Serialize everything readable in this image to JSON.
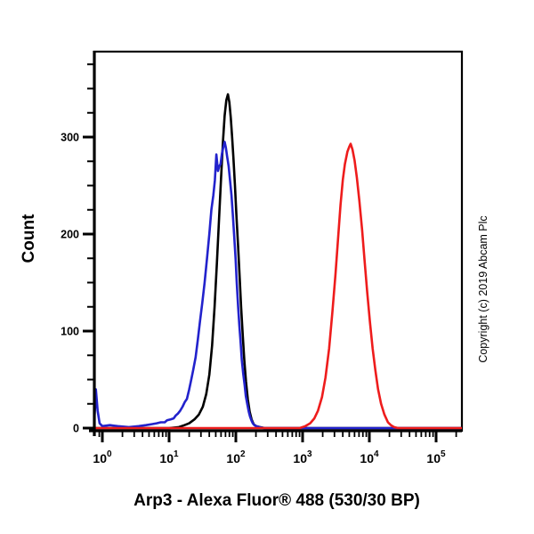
{
  "figure": {
    "copyright": "Copyright (c) 2019 Abcam Plc"
  },
  "chart_data": {
    "type": "line",
    "subtype": "flow-cytometry-histogram",
    "title": "",
    "xlabel": "Arp3 - Alexa Fluor® 488 (530/30 BP)",
    "ylabel": "Count",
    "x_scale": "log10",
    "x_tick_base": "10",
    "x_tick_exponents": [
      0,
      1,
      2,
      3,
      4,
      5
    ],
    "x_range_log": [
      -0.13,
      5.4
    ],
    "y_ticks": [
      0,
      100,
      200,
      300
    ],
    "y_minor_step": 25,
    "ylim": [
      0,
      388
    ],
    "grid": false,
    "legend": "none",
    "series": [
      {
        "name": "black-histogram",
        "color": "#000000",
        "peak_x": 76,
        "peak_y": 344,
        "points": [
          [
            0.74,
            0
          ],
          [
            10,
            0
          ],
          [
            14,
            1
          ],
          [
            17,
            3
          ],
          [
            20,
            5
          ],
          [
            24,
            9
          ],
          [
            28,
            14
          ],
          [
            32,
            22
          ],
          [
            36,
            35
          ],
          [
            40,
            55
          ],
          [
            44,
            85
          ],
          [
            48,
            125
          ],
          [
            52,
            170
          ],
          [
            56,
            215
          ],
          [
            60,
            258
          ],
          [
            64,
            295
          ],
          [
            68,
            322
          ],
          [
            72,
            338
          ],
          [
            76,
            344
          ],
          [
            80,
            336
          ],
          [
            84,
            320
          ],
          [
            88,
            300
          ],
          [
            92,
            278
          ],
          [
            97,
            250
          ],
          [
            102,
            220
          ],
          [
            108,
            188
          ],
          [
            114,
            155
          ],
          [
            120,
            125
          ],
          [
            127,
            95
          ],
          [
            134,
            70
          ],
          [
            142,
            48
          ],
          [
            151,
            30
          ],
          [
            161,
            17
          ],
          [
            172,
            9
          ],
          [
            185,
            4
          ],
          [
            200,
            2
          ],
          [
            230,
            1
          ],
          [
            270,
            0
          ],
          [
            250000,
            0
          ]
        ]
      },
      {
        "name": "blue-histogram",
        "color": "#2222cc",
        "peak_x": 68,
        "peak_y": 295,
        "points": [
          [
            0.74,
            0
          ],
          [
            0.78,
            22
          ],
          [
            0.8,
            40
          ],
          [
            0.85,
            18
          ],
          [
            0.91,
            5
          ],
          [
            1.0,
            2
          ],
          [
            1.3,
            3
          ],
          [
            1.7,
            2
          ],
          [
            2.5,
            1
          ],
          [
            3.5,
            2
          ],
          [
            4.5,
            3
          ],
          [
            5.5,
            4
          ],
          [
            6.5,
            5
          ],
          [
            7.5,
            6
          ],
          [
            8.0,
            6
          ],
          [
            8.6,
            6
          ],
          [
            9.3,
            8
          ],
          [
            10.5,
            9
          ],
          [
            11.7,
            10
          ],
          [
            12.6,
            13
          ],
          [
            13.6,
            15
          ],
          [
            14.7,
            18
          ],
          [
            15.9,
            22
          ],
          [
            17.2,
            27
          ],
          [
            18.5,
            30
          ],
          [
            20,
            40
          ],
          [
            21.5,
            50
          ],
          [
            23,
            60
          ],
          [
            25,
            73
          ],
          [
            27,
            92
          ],
          [
            29,
            110
          ],
          [
            31.5,
            130
          ],
          [
            34,
            150
          ],
          [
            37,
            175
          ],
          [
            40,
            200
          ],
          [
            43,
            225
          ],
          [
            46,
            240
          ],
          [
            48.5,
            255
          ],
          [
            51,
            282
          ],
          [
            54,
            265
          ],
          [
            56.5,
            270
          ],
          [
            59,
            272
          ],
          [
            62,
            283
          ],
          [
            65,
            290
          ],
          [
            68,
            295
          ],
          [
            71,
            289
          ],
          [
            74,
            280
          ],
          [
            78,
            270
          ],
          [
            82,
            255
          ],
          [
            86,
            240
          ],
          [
            90,
            220
          ],
          [
            94,
            200
          ],
          [
            99,
            175
          ],
          [
            103,
            150
          ],
          [
            108,
            126
          ],
          [
            113,
            105
          ],
          [
            118,
            88
          ],
          [
            123,
            70
          ],
          [
            129,
            56
          ],
          [
            135,
            45
          ],
          [
            141,
            33
          ],
          [
            148,
            25
          ],
          [
            156,
            17
          ],
          [
            163,
            12
          ],
          [
            171,
            8
          ],
          [
            179,
            5
          ],
          [
            190,
            3
          ],
          [
            202,
            2
          ],
          [
            225,
            1
          ],
          [
            260,
            0
          ],
          [
            250000,
            0
          ]
        ]
      },
      {
        "name": "red-histogram",
        "color": "#ee1c1c",
        "peak_x": 5250,
        "peak_y": 293,
        "points": [
          [
            0.74,
            0
          ],
          [
            900,
            0
          ],
          [
            1100,
            2
          ],
          [
            1300,
            5
          ],
          [
            1500,
            10
          ],
          [
            1700,
            18
          ],
          [
            1950,
            32
          ],
          [
            2200,
            52
          ],
          [
            2500,
            82
          ],
          [
            2800,
            120
          ],
          [
            3100,
            158
          ],
          [
            3400,
            196
          ],
          [
            3700,
            230
          ],
          [
            4000,
            256
          ],
          [
            4300,
            272
          ],
          [
            4700,
            285
          ],
          [
            5000,
            290
          ],
          [
            5250,
            293
          ],
          [
            5600,
            287
          ],
          [
            6000,
            276
          ],
          [
            6500,
            258
          ],
          [
            7100,
            234
          ],
          [
            7800,
            204
          ],
          [
            8500,
            172
          ],
          [
            9300,
            140
          ],
          [
            10200,
            110
          ],
          [
            11200,
            82
          ],
          [
            12300,
            60
          ],
          [
            13500,
            40
          ],
          [
            15000,
            25
          ],
          [
            16800,
            14
          ],
          [
            19000,
            6
          ],
          [
            21000,
            3
          ],
          [
            23500,
            1
          ],
          [
            27000,
            0
          ],
          [
            250000,
            0
          ]
        ]
      }
    ]
  }
}
